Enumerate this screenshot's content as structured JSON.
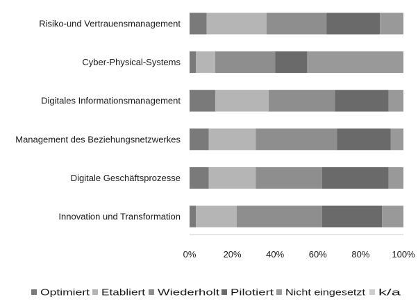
{
  "chart_data": {
    "type": "bar",
    "orientation": "horizontal",
    "stacked": true,
    "percent": true,
    "categories": [
      "Risiko-und Vertrauensmanagement",
      "Cyber-Physical-Systems",
      "Digitales Informationsmanagement",
      "Management des Beziehungsnetzwerkes",
      "Digitale Geschäftsprozesse",
      "Innovation und Transformation"
    ],
    "series": [
      {
        "name": "Optimiert",
        "color": "#7a7a7a",
        "values": [
          8,
          3,
          12,
          9,
          9,
          3
        ]
      },
      {
        "name": "Etabliert",
        "color": "#b5b5b5",
        "values": [
          28,
          9,
          25,
          22,
          22,
          19
        ]
      },
      {
        "name": "Wiederholt",
        "color": "#8e8e8e",
        "values": [
          28,
          28,
          31,
          38,
          31,
          40
        ]
      },
      {
        "name": "Pilotiert",
        "color": "#6a6a6a",
        "values": [
          25,
          15,
          25,
          25,
          31,
          28
        ]
      },
      {
        "name": "Nicht eingesetzt",
        "color": "#999999",
        "values": [
          11,
          45,
          7,
          6,
          7,
          10
        ]
      },
      {
        "name": "k/a",
        "color": "#cdcdcd",
        "values": [
          0,
          0,
          0,
          0,
          0,
          0
        ]
      }
    ],
    "xlim": [
      0,
      100
    ],
    "x_ticks": [
      "0%",
      "20%",
      "40%",
      "60%",
      "80%",
      "100%"
    ],
    "grid": false,
    "legend_position": "bottom"
  }
}
